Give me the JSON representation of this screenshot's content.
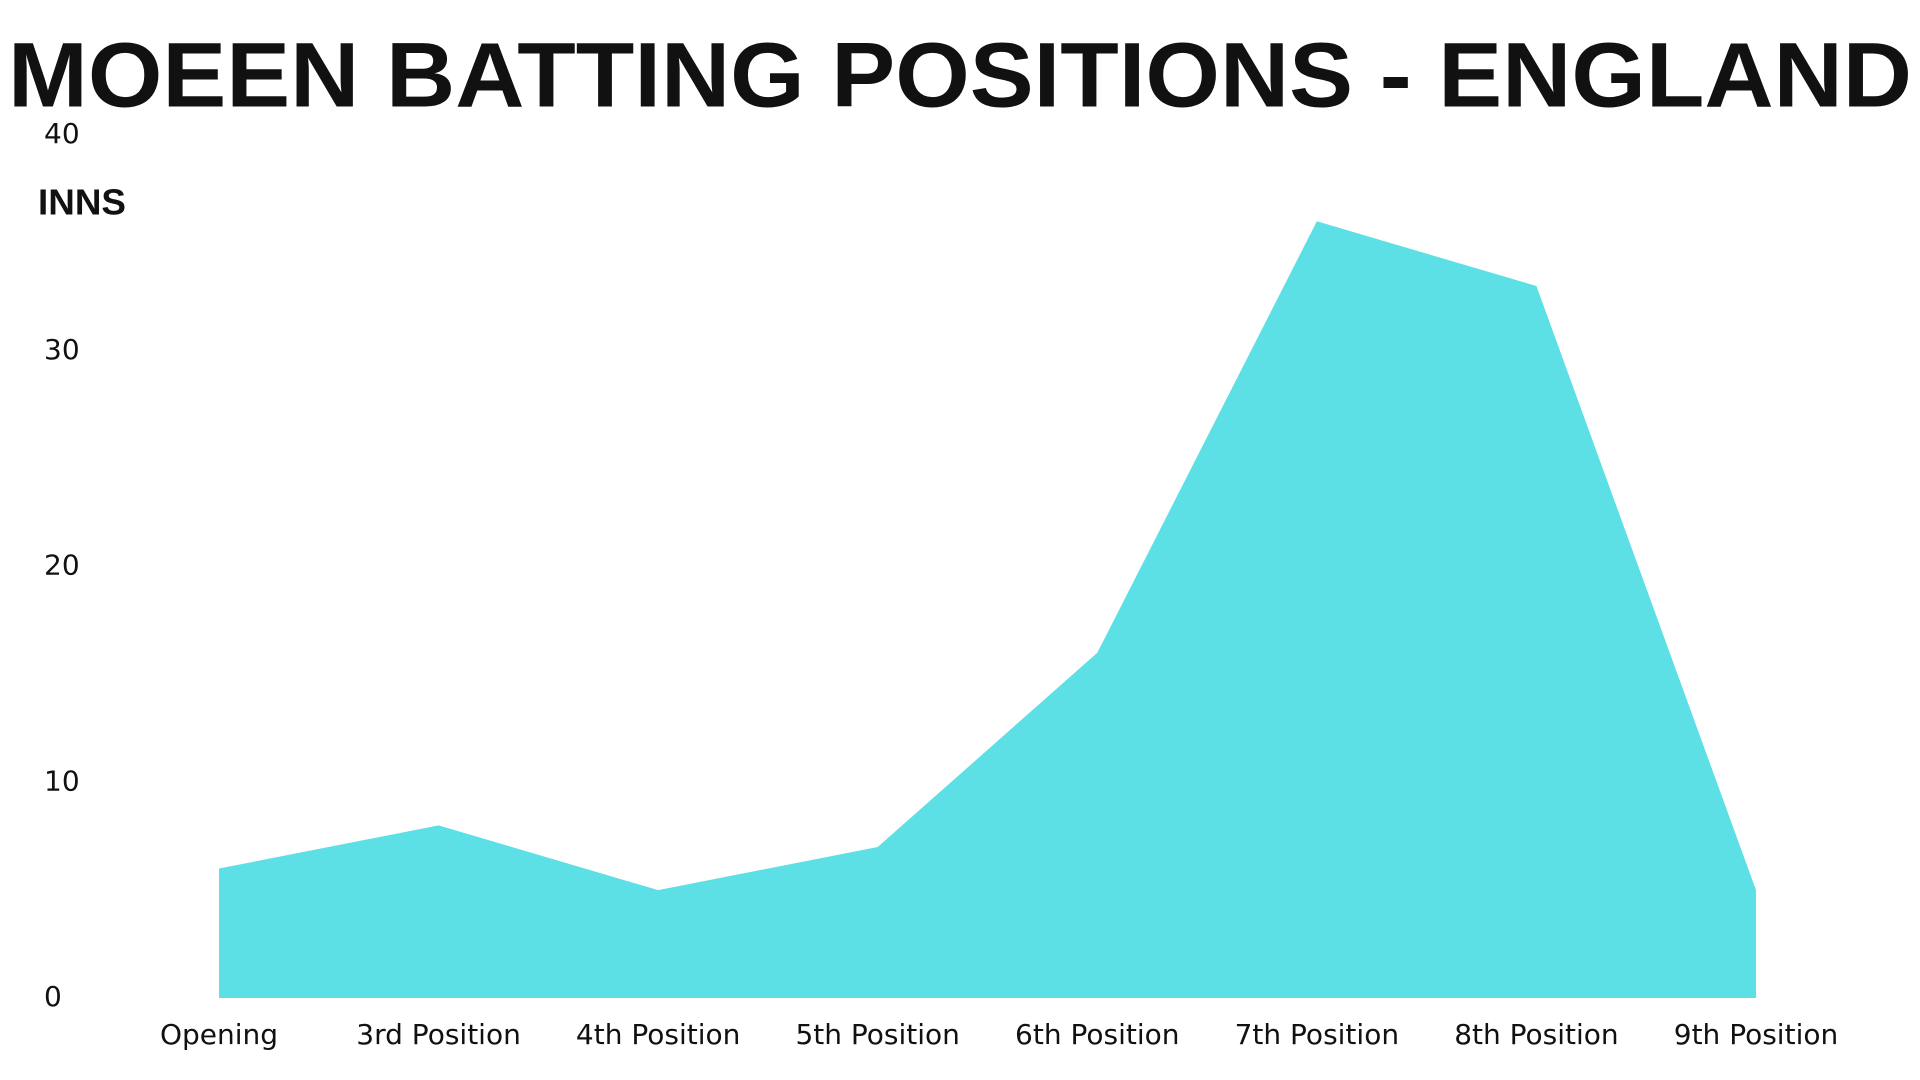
{
  "chart_data": {
    "type": "area",
    "title": "MOEEN BATTING POSITIONS - ENGLAND",
    "y_label": "INNS",
    "categories": [
      "Opening",
      "3rd Position",
      "4th Position",
      "5th Position",
      "6th Position",
      "7th Position",
      "8th Position",
      "9th Position"
    ],
    "values": [
      6,
      8,
      5,
      7,
      16,
      36,
      33,
      5
    ],
    "color": "#5ce0e6",
    "ylim": [
      0,
      40
    ],
    "yticks": [
      0,
      10,
      20,
      30,
      40
    ],
    "grid": false
  }
}
